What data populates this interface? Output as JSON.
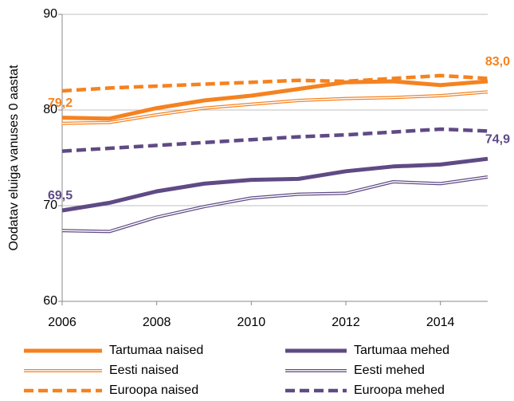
{
  "chart_data": {
    "type": "line",
    "y_label": "Oodatav eluiga vanuses 0 aastat",
    "x": [
      2006,
      2007,
      2008,
      2009,
      2010,
      2011,
      2012,
      2013,
      2014,
      2015
    ],
    "xlim": [
      2006,
      2015
    ],
    "xticks": [
      2006,
      2008,
      2010,
      2012,
      2014
    ],
    "ylim": [
      60,
      90
    ],
    "yticks": [
      60,
      70,
      80,
      90
    ],
    "grid": true,
    "series": [
      {
        "name": "Tartumaa naised",
        "color": "#f58220",
        "style": "thick",
        "values": [
          79.2,
          79.1,
          80.2,
          81.0,
          81.5,
          82.2,
          82.9,
          83.0,
          82.6,
          83.0
        ],
        "value_labels": [
          "79,2",
          null,
          null,
          null,
          null,
          null,
          null,
          null,
          null,
          "83,0"
        ]
      },
      {
        "name": "Tartumaa mehed",
        "color": "#5f4a85",
        "style": "thick",
        "values": [
          69.5,
          70.3,
          71.5,
          72.3,
          72.7,
          72.8,
          73.6,
          74.1,
          74.3,
          74.9
        ],
        "value_labels": [
          "69,5",
          null,
          null,
          null,
          null,
          null,
          null,
          null,
          null,
          "74,9"
        ]
      },
      {
        "name": "Eesti naised",
        "color": "#f58220",
        "style": "double",
        "values": [
          78.6,
          78.7,
          79.5,
          80.2,
          80.6,
          81.0,
          81.2,
          81.3,
          81.5,
          81.9
        ]
      },
      {
        "name": "Eesti mehed",
        "color": "#5f4a85",
        "style": "double",
        "values": [
          67.4,
          67.3,
          68.8,
          69.9,
          70.8,
          71.2,
          71.3,
          72.5,
          72.3,
          73.0
        ]
      },
      {
        "name": "Euroopa naised",
        "color": "#f58220",
        "style": "dashed",
        "values": [
          82.0,
          82.3,
          82.5,
          82.7,
          82.9,
          83.1,
          83.0,
          83.3,
          83.6,
          83.3
        ]
      },
      {
        "name": "Euroopa mehed",
        "color": "#5f4a85",
        "style": "dashed",
        "values": [
          75.7,
          76.0,
          76.3,
          76.6,
          76.9,
          77.2,
          77.4,
          77.7,
          78.0,
          77.8
        ]
      }
    ]
  }
}
